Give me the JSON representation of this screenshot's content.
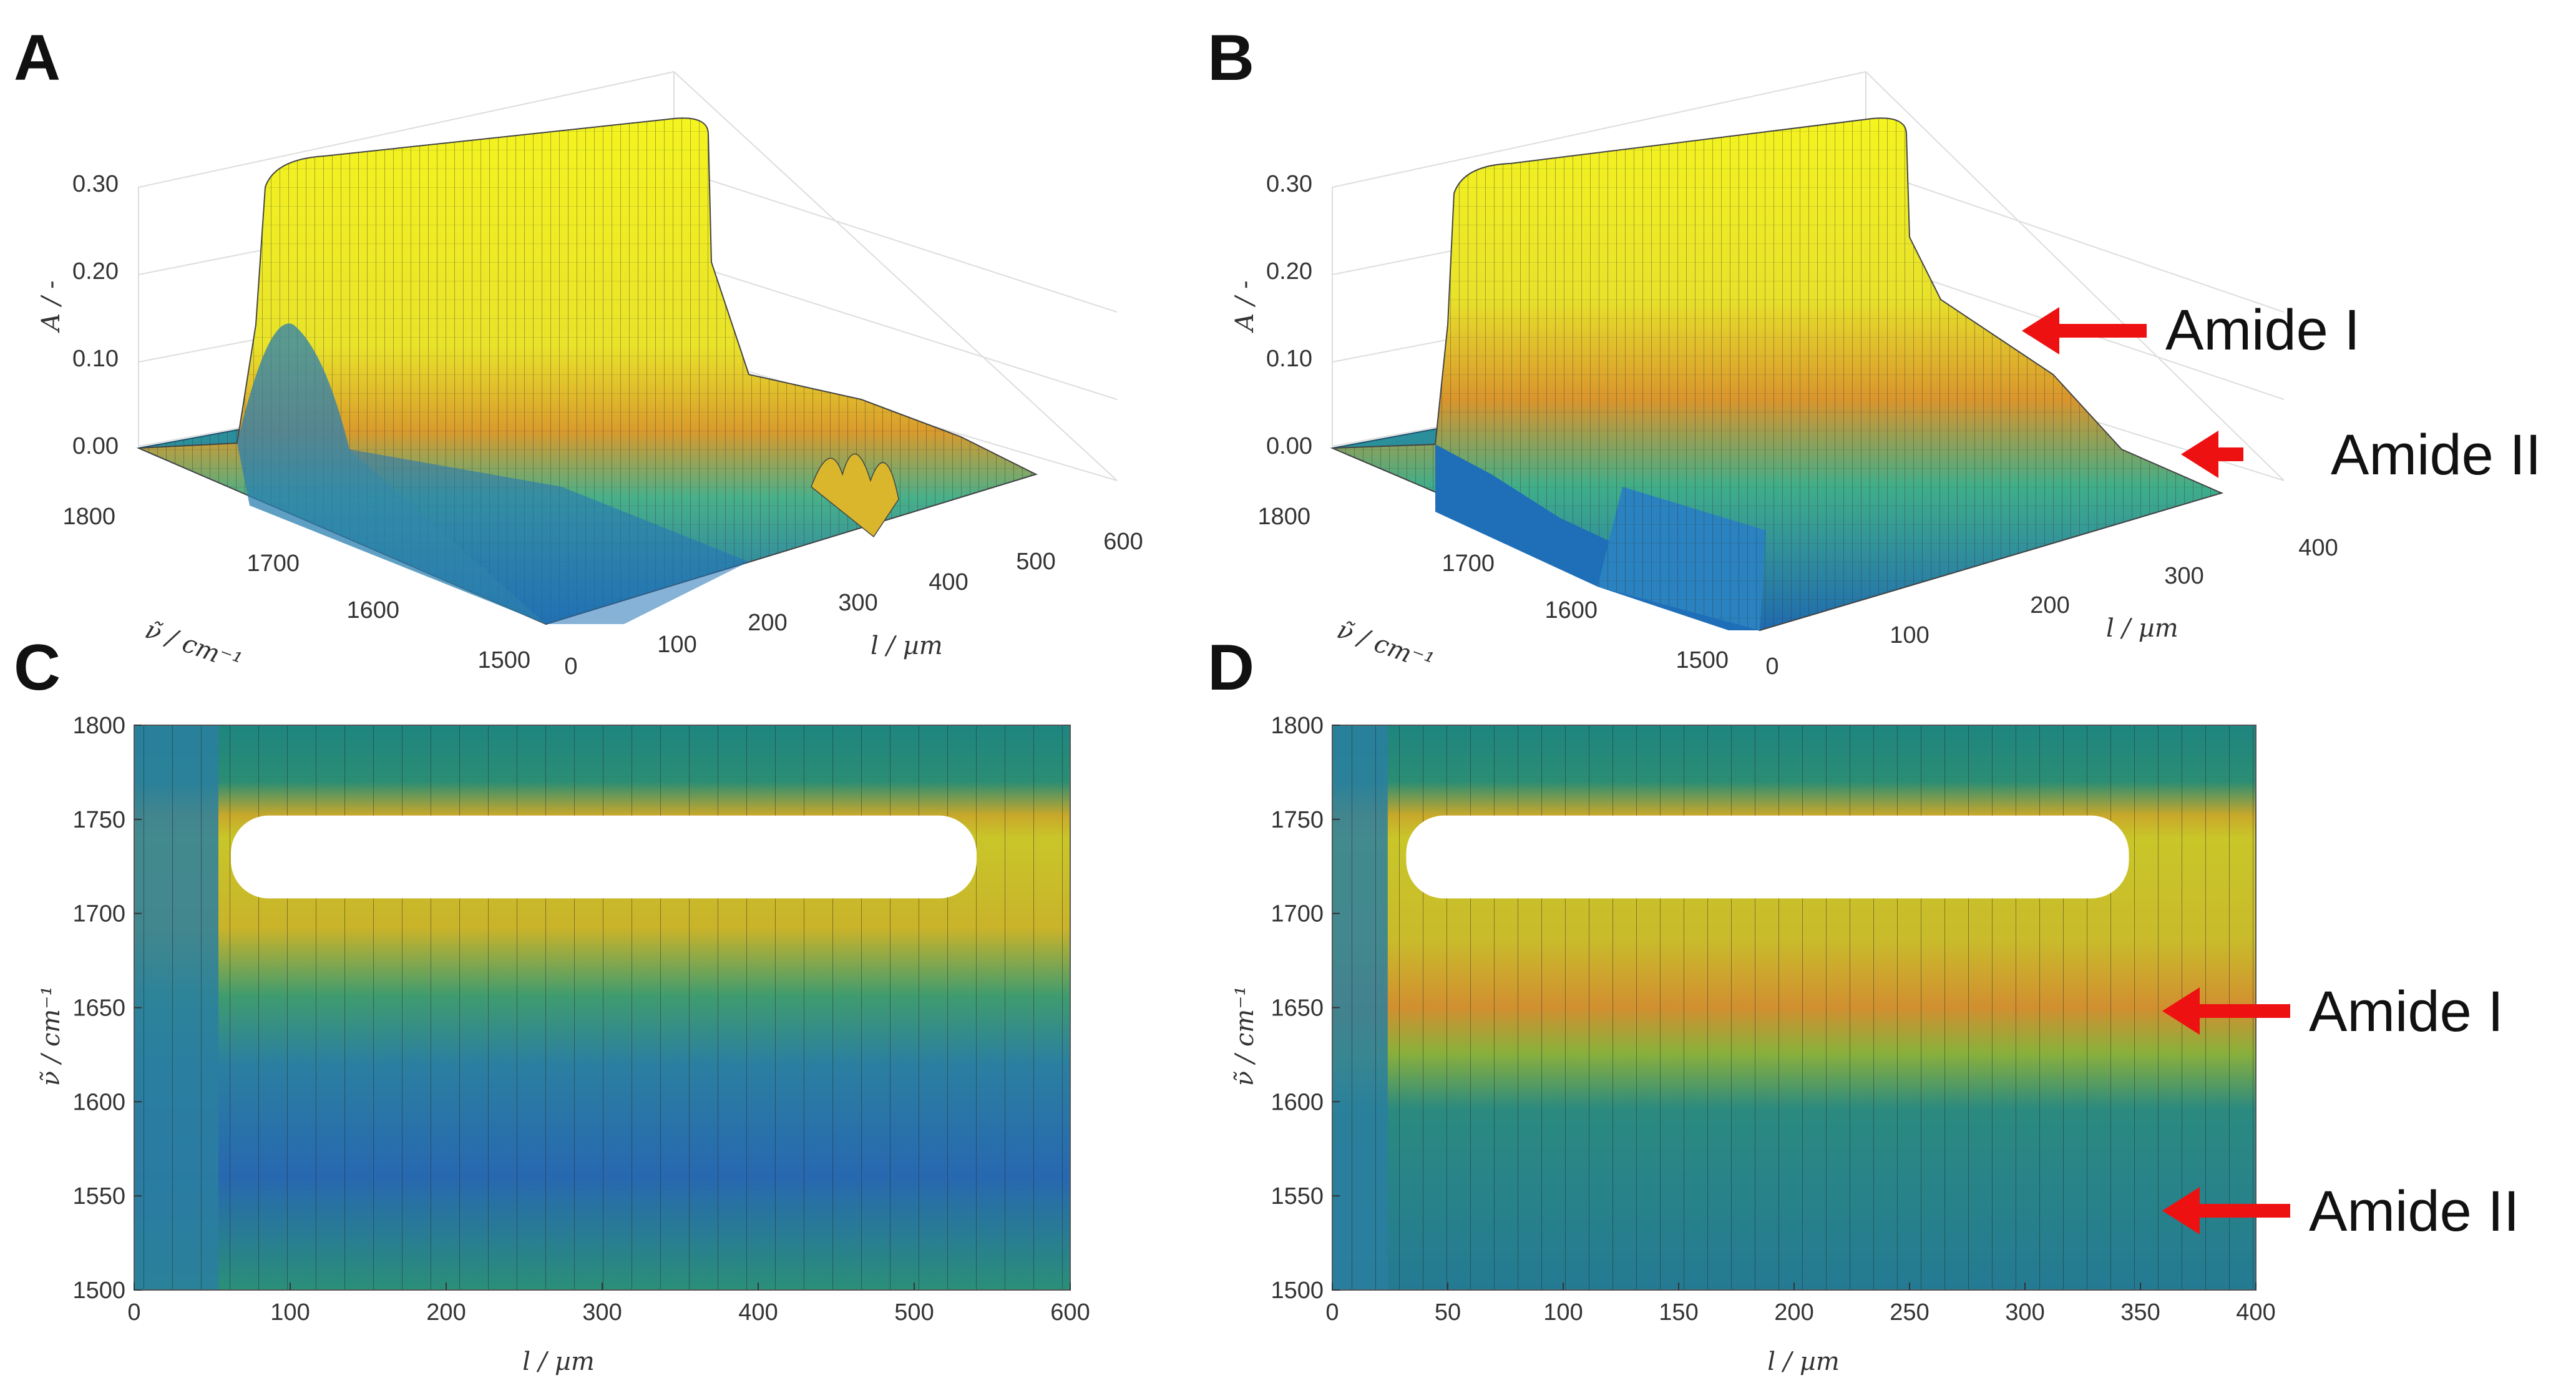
{
  "figure": {
    "panel_letters": [
      "A",
      "B",
      "C",
      "D"
    ],
    "colors": {
      "arrow": "#ee1111",
      "low": "#1f5fa8",
      "mid": "#1f8a80",
      "high_orange": "#d9902b",
      "top_yellow": "#f2f21e"
    }
  },
  "chart_data": [
    {
      "panel": "A",
      "type": "surface3d",
      "zlabel": "A / -",
      "ylabel": "ν̃ / cm⁻¹",
      "xlabel": "l / µm",
      "z_ticks": [
        "0.00",
        "0.10",
        "0.20",
        "0.30"
      ],
      "y_ticks": [
        "1800",
        "1700",
        "1600",
        "1500"
      ],
      "x_ticks": [
        "0",
        "100",
        "200",
        "300",
        "400",
        "500",
        "600"
      ],
      "xlim": [
        0,
        600
      ],
      "ylim": [
        1500,
        1800
      ],
      "zlim": [
        0,
        0.3
      ],
      "peak_band_wavenumber": 1730,
      "peak_absorbance_clipped": 0.32
    },
    {
      "panel": "B",
      "type": "surface3d",
      "zlabel": "A / -",
      "ylabel": "ν̃ / cm⁻¹",
      "xlabel": "l / µm",
      "z_ticks": [
        "0.00",
        "0.10",
        "0.20",
        "0.30"
      ],
      "y_ticks": [
        "1800",
        "1700",
        "1600",
        "1500"
      ],
      "x_ticks": [
        "0",
        "100",
        "200",
        "300",
        "400"
      ],
      "xlim": [
        0,
        400
      ],
      "ylim": [
        1500,
        1800
      ],
      "zlim": [
        0,
        0.3
      ],
      "annotations": [
        {
          "text": "Amide I",
          "arrow": "left"
        },
        {
          "text": "Amide II",
          "arrow": "left"
        }
      ]
    },
    {
      "panel": "C",
      "type": "heatmap",
      "xlabel": "l / µm",
      "ylabel": "ν̃ / cm⁻¹",
      "x_ticks": [
        "0",
        "100",
        "200",
        "300",
        "400",
        "500",
        "600"
      ],
      "y_ticks": [
        "1800",
        "1750",
        "1700",
        "1650",
        "1600",
        "1550",
        "1500"
      ],
      "xlim": [
        0,
        600
      ],
      "ylim": [
        1500,
        1800
      ],
      "saturated_band": {
        "x": [
          62,
          540
        ],
        "wavenumber": [
          1708,
          1752
        ]
      },
      "sample_extent_um": [
        60,
        570
      ]
    },
    {
      "panel": "D",
      "type": "heatmap",
      "xlabel": "l / µm",
      "ylabel": "ν̃ / cm⁻¹",
      "x_ticks": [
        "0",
        "50",
        "100",
        "150",
        "200",
        "250",
        "300",
        "350",
        "400"
      ],
      "y_ticks": [
        "1800",
        "1750",
        "1700",
        "1650",
        "1600",
        "1550",
        "1500"
      ],
      "xlim": [
        0,
        400
      ],
      "ylim": [
        1500,
        1800
      ],
      "saturated_band": {
        "x": [
          32,
          345
        ],
        "wavenumber": [
          1708,
          1752
        ]
      },
      "annotations": [
        {
          "text": "Amide I",
          "wavenumber": 1650
        },
        {
          "text": "Amide II",
          "wavenumber": 1545
        }
      ]
    }
  ]
}
